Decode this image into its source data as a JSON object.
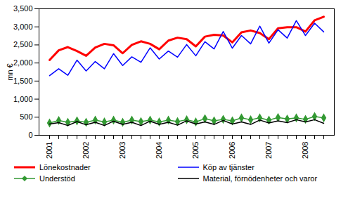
{
  "chart_data": {
    "type": "line",
    "y_label": "mn €",
    "categories": [
      "2001",
      null,
      null,
      null,
      "2002",
      null,
      null,
      null,
      "2003",
      null,
      null,
      null,
      "2004",
      null,
      null,
      null,
      "2005",
      null,
      null,
      null,
      "2006",
      null,
      null,
      null,
      "2007",
      null,
      null,
      null,
      "2008",
      null,
      null
    ],
    "ylim": [
      0,
      3500
    ],
    "yticks": [
      0,
      500,
      1000,
      1500,
      2000,
      2500,
      3000,
      3500
    ],
    "grid": false,
    "legend": "bottom",
    "series": [
      {
        "name": "Lönekostnader",
        "color": "#ff0000",
        "marker": "none",
        "values": [
          2080,
          2350,
          2440,
          2330,
          2200,
          2430,
          2530,
          2490,
          2270,
          2500,
          2600,
          2530,
          2380,
          2620,
          2700,
          2660,
          2460,
          2730,
          2780,
          2760,
          2570,
          2850,
          2900,
          2830,
          2660,
          2960,
          2990,
          2990,
          2870,
          3180,
          3280
        ]
      },
      {
        "name": "Köp av tjänster",
        "color": "#0000ff",
        "marker": "none",
        "values": [
          1650,
          1840,
          1660,
          2080,
          1780,
          2040,
          1840,
          2260,
          1930,
          2170,
          2020,
          2420,
          2110,
          2330,
          2160,
          2510,
          2200,
          2590,
          2390,
          2870,
          2410,
          2760,
          2530,
          3020,
          2550,
          2920,
          2690,
          3170,
          2760,
          3100,
          2860
        ]
      },
      {
        "name": "Understöd",
        "color": "#339933",
        "marker": "diamond",
        "values": [
          340,
          410,
          360,
          400,
          360,
          420,
          370,
          420,
          360,
          420,
          380,
          420,
          370,
          420,
          380,
          430,
          370,
          460,
          400,
          440,
          400,
          480,
          430,
          480,
          420,
          490,
          450,
          480,
          440,
          520,
          480
        ]
      },
      {
        "name": "Material, förnödenheter och varor",
        "color": "#000000",
        "marker": "none",
        "values": [
          310,
          350,
          270,
          380,
          290,
          360,
          270,
          390,
          300,
          360,
          270,
          390,
          300,
          360,
          280,
          400,
          310,
          370,
          300,
          410,
          310,
          370,
          300,
          420,
          340,
          400,
          350,
          430,
          370,
          430,
          330
        ]
      }
    ]
  }
}
